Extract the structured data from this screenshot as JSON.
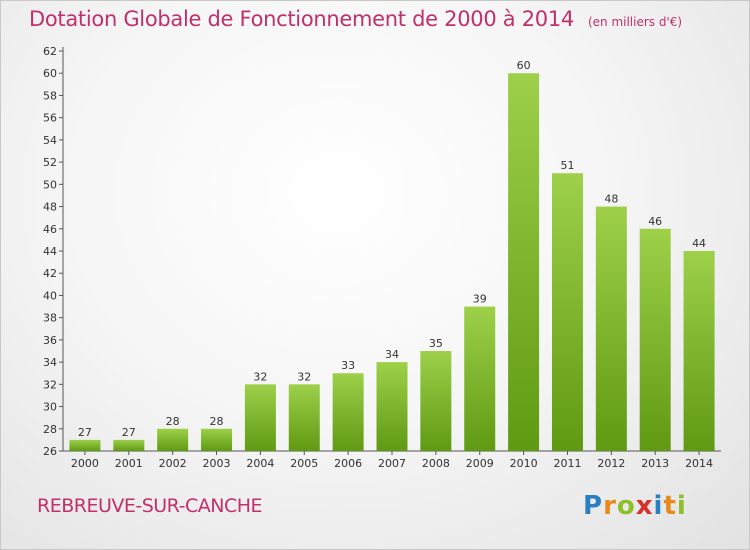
{
  "title": "Dotation Globale de Fonctionnement de 2000 à 2014",
  "unit_note": "(en milliers d'€)",
  "commune": "REBREUVE-SUR-CANCHE",
  "brand": {
    "letters": [
      "P",
      "r",
      "o",
      "x",
      "i",
      "t",
      "i"
    ],
    "colors": [
      "#2a7fc1",
      "#e8891c",
      "#8cbf2a",
      "#d6302a",
      "#2a7fc1",
      "#e8891c",
      "#8cbf2a"
    ]
  },
  "colors": {
    "bar_top": "#9ed04a",
    "bar_bottom": "#5f9a12",
    "axis": "#555555",
    "title": "#c0306a"
  },
  "chart_data": {
    "type": "bar",
    "title": "Dotation Globale de Fonctionnement de 2000 à 2014",
    "xlabel": "",
    "ylabel": "",
    "categories": [
      "2000",
      "2001",
      "2002",
      "2003",
      "2004",
      "2005",
      "2006",
      "2007",
      "2008",
      "2009",
      "2010",
      "2011",
      "2012",
      "2013",
      "2014"
    ],
    "values": [
      27,
      27,
      28,
      28,
      32,
      32,
      33,
      34,
      35,
      39,
      60,
      51,
      48,
      46,
      44
    ],
    "data_labels": [
      "27",
      "27",
      "28",
      "28",
      "32",
      "32",
      "33",
      "34",
      "35",
      "39",
      "60",
      "51",
      "48",
      "46",
      "44"
    ],
    "ylim": [
      26,
      62
    ],
    "yticks": [
      "26",
      "28",
      "30",
      "32",
      "34",
      "36",
      "38",
      "40",
      "42",
      "44",
      "46",
      "48",
      "50",
      "52",
      "54",
      "56",
      "58",
      "60",
      "62"
    ],
    "grid": false,
    "legend": "none"
  }
}
